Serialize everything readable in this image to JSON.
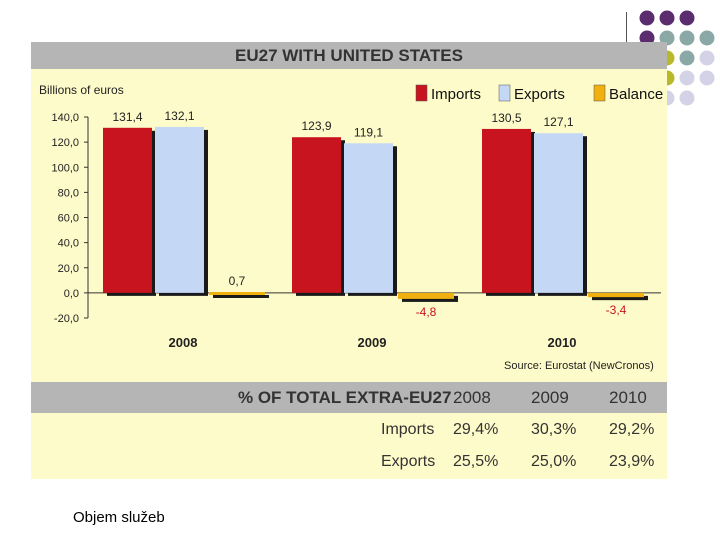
{
  "chart_data": {
    "type": "bar",
    "title": "EU27 WITH UNITED STATES",
    "ylabel": "Billions of euros",
    "categories": [
      "2008",
      "2009",
      "2010"
    ],
    "series": [
      {
        "name": "Imports",
        "color": "#c8141e",
        "values": [
          131.4,
          123.9,
          130.5
        ],
        "labels": [
          "131,4",
          "123,9",
          "130,5"
        ]
      },
      {
        "name": "Exports",
        "color": "#c4d8f6",
        "values": [
          132.1,
          119.1,
          127.1
        ],
        "labels": [
          "132,1",
          "119,1",
          "127,1"
        ]
      },
      {
        "name": "Balance",
        "color": "#f0b010",
        "values": [
          0.7,
          -4.8,
          -3.4
        ],
        "labels": [
          "0,7",
          "-4,8",
          "-3,4"
        ]
      }
    ],
    "ylim": [
      -20,
      140
    ],
    "yticks": [
      -20,
      0,
      20,
      40,
      60,
      80,
      100,
      120,
      140
    ],
    "ytick_labels": [
      "-20,0",
      "0,0",
      "20,0",
      "40,0",
      "60,0",
      "80,0",
      "100,0",
      "120,0",
      "140,0"
    ],
    "source": "Source: Eurostat (NewCronos)"
  },
  "table": {
    "header": "% OF TOTAL EXTRA-EU27",
    "years": [
      "2008",
      "2009",
      "2010"
    ],
    "rows": [
      {
        "label": "Imports",
        "values": [
          "29,4%",
          "30,3%",
          "29,2%"
        ]
      },
      {
        "label": "Exports",
        "values": [
          "25,5%",
          "25,0%",
          "23,9%"
        ]
      }
    ]
  },
  "caption": "Objem služeb",
  "colors": {
    "purple": "#5b2d6e",
    "teal": "#8aa8a6",
    "olive": "#b9b82a",
    "lavender": "#d4d2e6"
  }
}
